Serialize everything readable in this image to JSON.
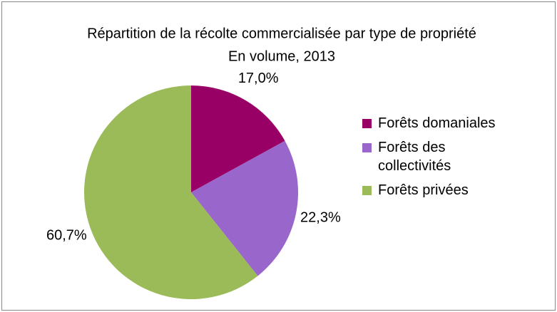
{
  "chart_data": {
    "type": "pie",
    "title": "Répartition de la récolte commercialisée par type de propriété",
    "subtitle": "En volume, 2013",
    "categories": [
      "Forêts domaniales",
      "Forêts des collectivités",
      "Forêts privées"
    ],
    "values": [
      17.0,
      22.3,
      60.7
    ],
    "value_labels": [
      "17,0%",
      "22,3%",
      "60,7%"
    ],
    "colors": [
      "#990066",
      "#9966cc",
      "#9bbb59"
    ],
    "legend": "right"
  }
}
